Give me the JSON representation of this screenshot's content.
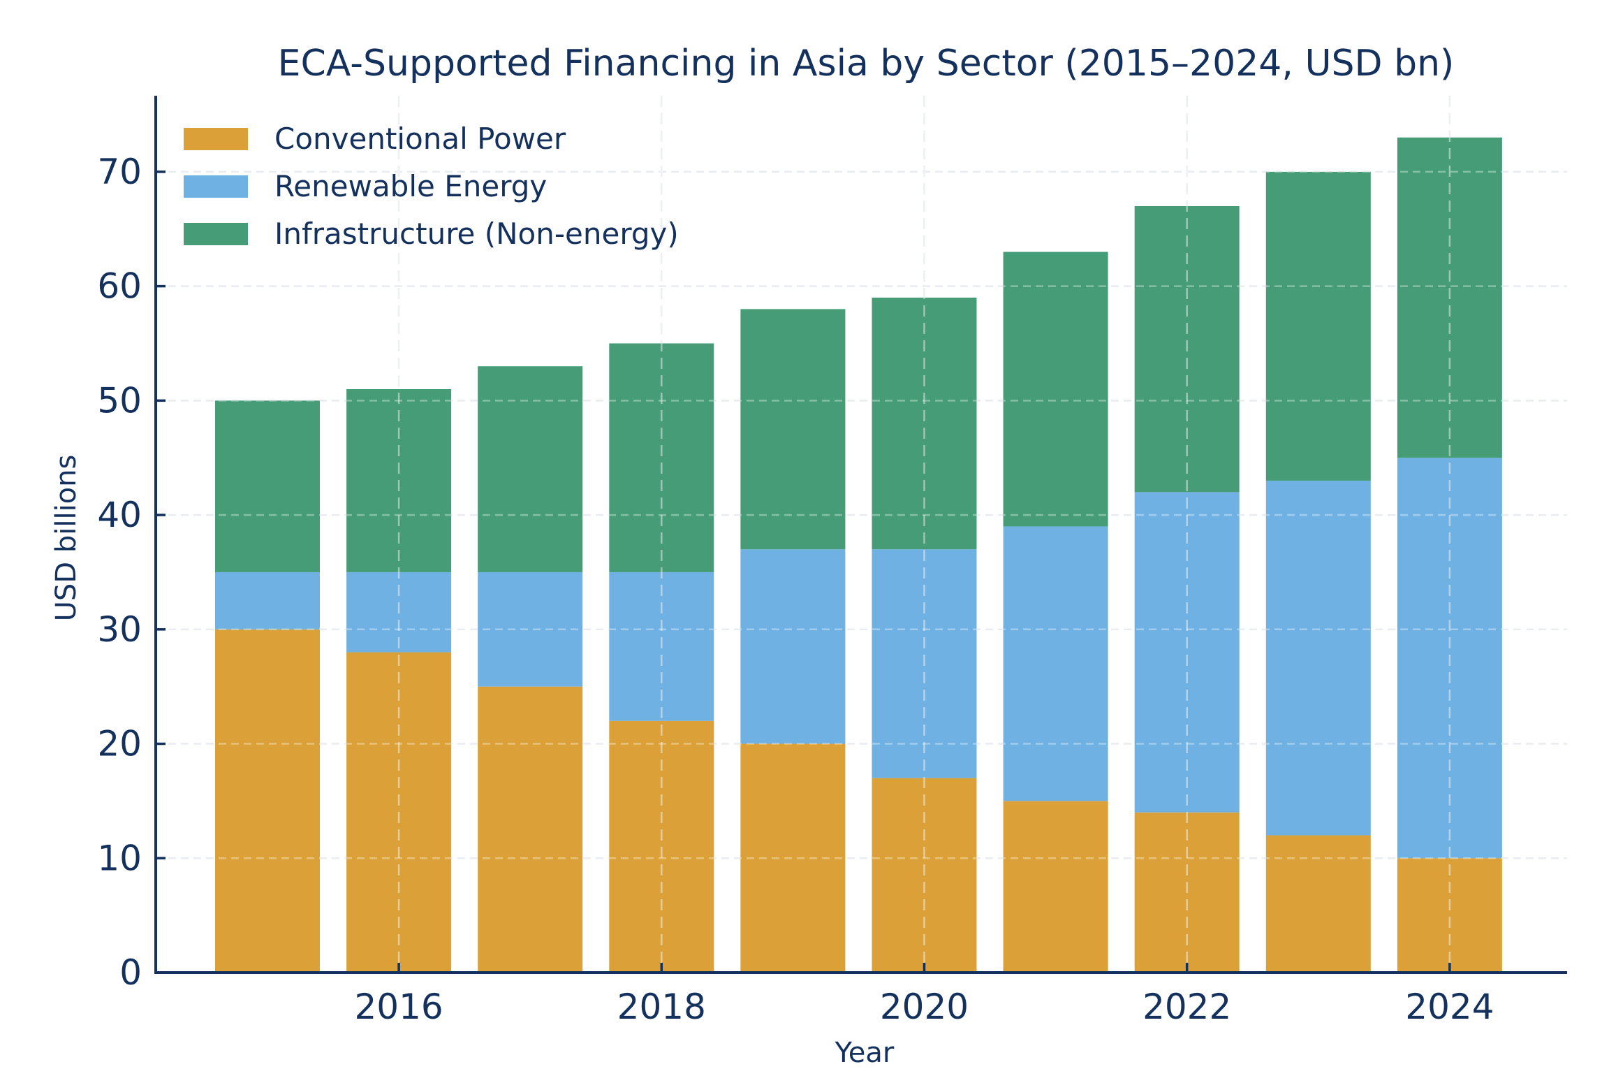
{
  "chart_data": {
    "type": "bar",
    "stacked": true,
    "title": "ECA-Supported Financing in Asia by Sector (2015–2024, USD bn)",
    "xlabel": "Year",
    "ylabel": "USD billions",
    "categories": [
      "2015",
      "2016",
      "2017",
      "2018",
      "2019",
      "2020",
      "2021",
      "2022",
      "2023",
      "2024"
    ],
    "x_tick_labels": [
      "2016",
      "2018",
      "2020",
      "2022",
      "2024"
    ],
    "y_ticks": [
      0,
      10,
      20,
      30,
      40,
      50,
      60,
      70
    ],
    "ylim": [
      0,
      76.65
    ],
    "grid": true,
    "legend_position": "upper left",
    "series": [
      {
        "name": "Conventional Power",
        "color": "#dba138",
        "values": [
          30,
          28,
          25,
          22,
          20,
          17,
          15,
          14,
          12,
          10
        ]
      },
      {
        "name": "Renewable Energy",
        "color": "#6fb1e2",
        "values": [
          5,
          7,
          10,
          13,
          17,
          20,
          24,
          28,
          31,
          35
        ]
      },
      {
        "name": "Infrastructure (Non-energy)",
        "color": "#469c77",
        "values": [
          15,
          16,
          18,
          20,
          21,
          22,
          24,
          25,
          27,
          28
        ]
      }
    ],
    "totals": [
      50,
      51,
      53,
      55,
      58,
      59,
      63,
      67,
      70,
      73
    ]
  },
  "colors": {
    "axis": "#13315c",
    "grid": "#dde3ec",
    "text": "#13315c"
  }
}
